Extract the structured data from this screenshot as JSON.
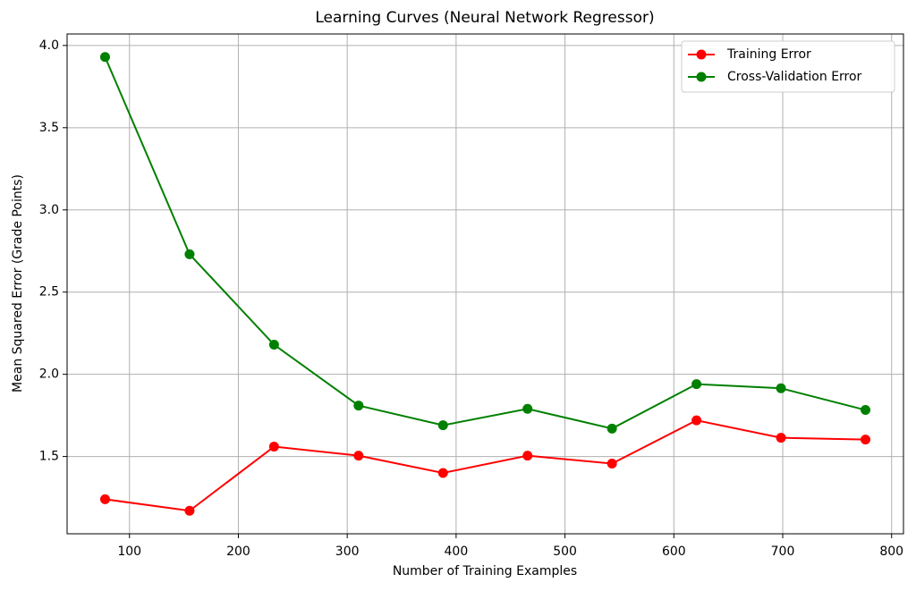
{
  "chart_data": {
    "type": "line",
    "title": "Learning Curves (Neural Network Regressor)",
    "x_label": "Number of Training Examples",
    "y_label": "Mean Squared Error (Grade Points)",
    "x": [
      77.6,
      155.2,
      232.8,
      310.4,
      388,
      465.6,
      543.2,
      620.8,
      698.4,
      776
    ],
    "series": [
      {
        "name": "Training Error",
        "color": "#ff0000",
        "values": [
          1.24,
          1.17,
          1.56,
          1.505,
          1.4,
          1.505,
          1.457,
          1.72,
          1.614,
          1.603
        ]
      },
      {
        "name": "Cross-Validation Error",
        "color": "#008000",
        "values": [
          3.93,
          2.73,
          2.18,
          1.81,
          1.69,
          1.79,
          1.67,
          1.94,
          1.915,
          1.783
        ]
      }
    ],
    "xlim": [
      42.7,
      810.9
    ],
    "xticks": [
      100,
      200,
      300,
      400,
      500,
      600,
      700,
      800
    ],
    "ylim": [
      1.03,
      4.07
    ],
    "yticks": [
      1.5,
      {
        "value": 2,
        "label": "2.0"
      },
      2.5,
      {
        "value": 3,
        "label": "3.0"
      },
      3.5,
      {
        "value": 4,
        "label": "4.0"
      }
    ],
    "grid": true,
    "legend": "upper right"
  }
}
